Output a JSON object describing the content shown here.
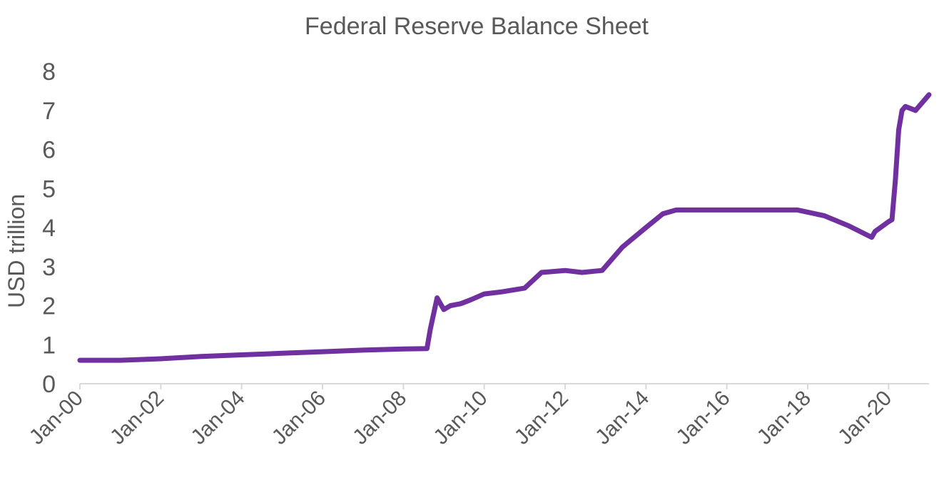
{
  "chart_data": {
    "type": "line",
    "title": "Federal Reserve Balance Sheet",
    "xlabel": "",
    "ylabel": "USD trillion",
    "ylim": [
      0,
      8
    ],
    "yticks": [
      0,
      1,
      2,
      3,
      4,
      5,
      6,
      7,
      8
    ],
    "xlim": [
      "2000-01",
      "2021-01"
    ],
    "xticks": [
      "Jan-00",
      "Jan-02",
      "Jan-04",
      "Jan-06",
      "Jan-08",
      "Jan-10",
      "Jan-12",
      "Jan-14",
      "Jan-16",
      "Jan-18",
      "Jan-20"
    ],
    "grid": false,
    "legend": "none",
    "series": [
      {
        "color": "#7030a0",
        "x": [
          "2000-01",
          "2001-01",
          "2002-01",
          "2003-01",
          "2004-01",
          "2005-01",
          "2006-01",
          "2007-01",
          "2008-01",
          "2008-08",
          "2008-09",
          "2008-11",
          "2009-01",
          "2009-03",
          "2009-06",
          "2009-09",
          "2010-01",
          "2010-06",
          "2011-01",
          "2011-06",
          "2012-01",
          "2012-06",
          "2012-12",
          "2013-06",
          "2014-01",
          "2014-06",
          "2014-10",
          "2015-06",
          "2016-06",
          "2017-06",
          "2017-10",
          "2018-06",
          "2019-01",
          "2019-08",
          "2019-09",
          "2020-01",
          "2020-02",
          "2020-03",
          "2020-04",
          "2020-05",
          "2020-06",
          "2020-09",
          "2021-01"
        ],
        "y": [
          0.6,
          0.6,
          0.64,
          0.7,
          0.74,
          0.78,
          0.82,
          0.86,
          0.89,
          0.9,
          1.4,
          2.2,
          1.9,
          2.0,
          2.05,
          2.15,
          2.3,
          2.35,
          2.45,
          2.85,
          2.9,
          2.85,
          2.9,
          3.5,
          4.0,
          4.35,
          4.45,
          4.45,
          4.45,
          4.45,
          4.45,
          4.3,
          4.05,
          3.75,
          3.9,
          4.15,
          4.2,
          5.2,
          6.5,
          7.0,
          7.1,
          7.0,
          7.4
        ]
      }
    ]
  }
}
